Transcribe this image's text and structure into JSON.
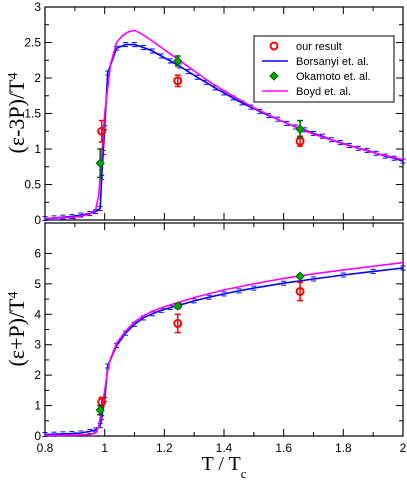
{
  "chart_data": [
    {
      "type": "line",
      "panel": "top",
      "ylabel": "(ε-3P)/T",
      "ylabel_sup": "4",
      "xlim": [
        0.8,
        2.0
      ],
      "ylim": [
        0,
        3
      ],
      "yticks": [
        0,
        0.5,
        1,
        1.5,
        2,
        2.5,
        3
      ],
      "ytick_labels": [
        "0",
        "0.5",
        "1",
        "1.5",
        "2",
        "2.5",
        "3"
      ],
      "grid": false,
      "legend_placement": "top-right",
      "series": [
        {
          "name": "Borsanyi et. al.",
          "color": "#0000ff",
          "style": "line-with-errorbars",
          "x": [
            0.8,
            0.83,
            0.86,
            0.89,
            0.92,
            0.95,
            0.97,
            0.985,
            0.99,
            0.995,
            1.0,
            1.01,
            1.04,
            1.07,
            1.1,
            1.13,
            1.16,
            1.19,
            1.22,
            1.25,
            1.28,
            1.31,
            1.34,
            1.37,
            1.4,
            1.43,
            1.46,
            1.49,
            1.52,
            1.55,
            1.58,
            1.61,
            1.64,
            1.67,
            1.7,
            1.73,
            1.76,
            1.79,
            1.82,
            1.85,
            1.88,
            1.91,
            1.94,
            1.97,
            2.0
          ],
          "y": [
            0.02,
            0.03,
            0.04,
            0.05,
            0.07,
            0.09,
            0.12,
            0.16,
            0.6,
            0.95,
            1.3,
            2.07,
            2.42,
            2.47,
            2.47,
            2.43,
            2.38,
            2.31,
            2.24,
            2.17,
            2.09,
            2.01,
            1.94,
            1.86,
            1.79,
            1.72,
            1.65,
            1.59,
            1.53,
            1.47,
            1.42,
            1.36,
            1.31,
            1.27,
            1.22,
            1.18,
            1.13,
            1.09,
            1.05,
            1.01,
            0.98,
            0.94,
            0.9,
            0.87,
            0.83
          ]
        },
        {
          "name": "Boyd et. al.",
          "color": "#ff00ff",
          "style": "line",
          "x": [
            0.8,
            0.9,
            0.95,
            0.97,
            0.98,
            0.99,
            1.0,
            1.02,
            1.04,
            1.06,
            1.08,
            1.1,
            1.12,
            1.15,
            1.2,
            1.25,
            1.3,
            1.35,
            1.4,
            1.5,
            1.6,
            1.7,
            1.8,
            1.9,
            2.0
          ],
          "y": [
            0.02,
            0.04,
            0.08,
            0.15,
            0.35,
            0.9,
            1.5,
            2.2,
            2.5,
            2.6,
            2.65,
            2.67,
            2.63,
            2.55,
            2.4,
            2.25,
            2.1,
            1.95,
            1.82,
            1.58,
            1.38,
            1.21,
            1.07,
            0.95,
            0.85
          ]
        },
        {
          "name": "our result",
          "color": "#ff0000",
          "style": "open-circle-errorbars",
          "x": [
            0.99,
            1.245,
            1.655
          ],
          "y": [
            1.25,
            1.96,
            1.11
          ],
          "yerr": [
            0.15,
            0.08,
            0.07
          ]
        },
        {
          "name": "Okamoto et. al.",
          "color": "#008000",
          "style": "diamond-errorbars",
          "x": [
            0.985,
            1.245,
            1.655
          ],
          "y": [
            0.8,
            2.24,
            1.28
          ],
          "yerr": [
            0.2,
            0.07,
            0.12
          ]
        }
      ]
    },
    {
      "type": "line",
      "panel": "bottom",
      "ylabel": "(ε+P)/T",
      "ylabel_sup": "4",
      "xlabel": "T / T",
      "xlabel_sub": "c",
      "xlim": [
        0.8,
        2.0
      ],
      "ylim": [
        0,
        7
      ],
      "xticks": [
        0.8,
        1.0,
        1.2,
        1.4,
        1.6,
        1.8,
        2.0
      ],
      "xtick_labels": [
        "0.8",
        "1",
        "1.2",
        "1.4",
        "1.6",
        "1.8",
        "2"
      ],
      "yticks": [
        0,
        1,
        2,
        3,
        4,
        5,
        6
      ],
      "ytick_labels": [
        "0",
        "1",
        "2",
        "3",
        "4",
        "5",
        "6"
      ],
      "grid": false,
      "series": [
        {
          "name": "Borsanyi et. al.",
          "color": "#0000ff",
          "style": "line-with-errorbars",
          "x": [
            0.8,
            0.83,
            0.86,
            0.89,
            0.92,
            0.95,
            0.97,
            0.985,
            0.99,
            1.0,
            1.01,
            1.04,
            1.07,
            1.1,
            1.13,
            1.16,
            1.19,
            1.22,
            1.25,
            1.3,
            1.35,
            1.4,
            1.45,
            1.5,
            1.6,
            1.7,
            1.8,
            1.9,
            2.0
          ],
          "y": [
            0.05,
            0.06,
            0.07,
            0.08,
            0.1,
            0.15,
            0.2,
            0.35,
            0.6,
            1.2,
            2.3,
            2.97,
            3.38,
            3.67,
            3.88,
            4.02,
            4.13,
            4.22,
            4.3,
            4.44,
            4.56,
            4.67,
            4.77,
            4.86,
            5.02,
            5.16,
            5.29,
            5.41,
            5.52
          ]
        },
        {
          "name": "Boyd et. al.",
          "color": "#ff00ff",
          "style": "line",
          "x": [
            0.8,
            0.9,
            0.95,
            0.97,
            0.98,
            0.99,
            1.0,
            1.01,
            1.02,
            1.04,
            1.07,
            1.1,
            1.13,
            1.16,
            1.2,
            1.25,
            1.3,
            1.4,
            1.5,
            1.6,
            1.7,
            1.8,
            1.9,
            2.0
          ],
          "y": [
            0.02,
            0.03,
            0.05,
            0.1,
            0.3,
            0.9,
            1.5,
            2.15,
            2.55,
            3.05,
            3.45,
            3.75,
            3.95,
            4.1,
            4.25,
            4.4,
            4.55,
            4.8,
            5.0,
            5.18,
            5.33,
            5.46,
            5.58,
            5.7
          ]
        },
        {
          "name": "our result",
          "color": "#ff0000",
          "style": "open-circle-errorbars",
          "x": [
            0.99,
            1.245,
            1.655
          ],
          "y": [
            1.12,
            3.7,
            4.75
          ],
          "yerr": [
            0.15,
            0.3,
            0.3
          ]
        },
        {
          "name": "Okamoto et. al.",
          "color": "#008000",
          "style": "diamond-errorbars",
          "x": [
            0.985,
            1.245,
            1.655
          ],
          "y": [
            0.85,
            4.27,
            5.25
          ],
          "yerr": [
            0.15,
            0.08,
            0.05
          ]
        }
      ]
    }
  ]
}
